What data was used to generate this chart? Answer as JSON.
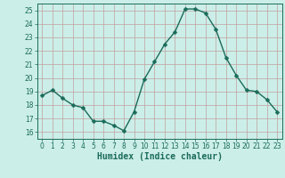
{
  "x": [
    0,
    1,
    2,
    3,
    4,
    5,
    6,
    7,
    8,
    9,
    10,
    11,
    12,
    13,
    14,
    15,
    16,
    17,
    18,
    19,
    20,
    21,
    22,
    23
  ],
  "y": [
    18.7,
    19.1,
    18.5,
    18.0,
    17.8,
    16.8,
    16.8,
    16.5,
    16.1,
    17.5,
    19.9,
    21.2,
    22.5,
    23.4,
    25.1,
    25.1,
    24.8,
    23.6,
    21.5,
    20.2,
    19.1,
    19.0,
    18.4,
    17.5
  ],
  "line_color": "#1a6b5a",
  "marker": "D",
  "markersize": 2.5,
  "linewidth": 1.0,
  "bg_color": "#cceee8",
  "grid_color": "#c0a0a0",
  "xlabel": "Humidex (Indice chaleur)",
  "ylabel": "",
  "xlim": [
    -0.5,
    23.5
  ],
  "ylim": [
    15.5,
    25.5
  ],
  "yticks": [
    16,
    17,
    18,
    19,
    20,
    21,
    22,
    23,
    24,
    25
  ],
  "xticks": [
    0,
    1,
    2,
    3,
    4,
    5,
    6,
    7,
    8,
    9,
    10,
    11,
    12,
    13,
    14,
    15,
    16,
    17,
    18,
    19,
    20,
    21,
    22,
    23
  ],
  "tick_labelsize": 5.5,
  "xlabel_fontsize": 7.0
}
